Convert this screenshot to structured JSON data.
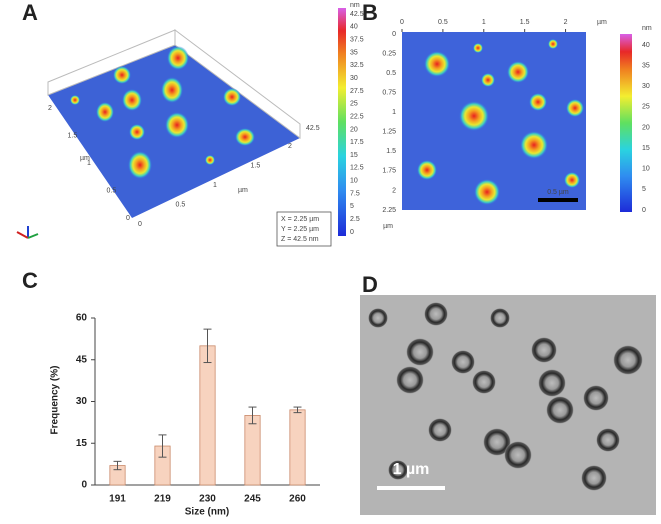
{
  "panels": {
    "a": "A",
    "b": "B",
    "c": "C",
    "d": "D"
  },
  "panel_a": {
    "colorbar_unit": "nm",
    "colorbar_ticks": [
      42.5,
      40,
      37.5,
      35,
      32.5,
      30,
      27.5,
      25,
      22.5,
      20,
      17.5,
      15,
      12.5,
      10,
      7.5,
      5,
      2.5,
      0
    ],
    "z_axis_label": "42.5",
    "x_ticks": [
      "0",
      "0.5",
      "1",
      "1.5",
      "2"
    ],
    "x_unit": "µm",
    "y_ticks": [
      "0",
      "0.5",
      "1",
      "1.5",
      "2"
    ],
    "y_unit": "µm",
    "info": [
      "X = 2.25 µm",
      "Y = 2.25 µm",
      "Z = 42.5 nm"
    ]
  },
  "panel_b": {
    "xticks": [
      0,
      0.5,
      1,
      1.5,
      2
    ],
    "x_unit": "µm",
    "yticks": [
      0,
      0.25,
      0.5,
      0.75,
      1,
      1.25,
      1.5,
      1.75,
      2,
      2.25
    ],
    "y_unit": "µm",
    "colorbar_unit": "nm",
    "colorbar_ticks": [
      0,
      5,
      10,
      15,
      20,
      25,
      30,
      35,
      40
    ],
    "scale_bar": "0.5 µm"
  },
  "chart_data": {
    "type": "bar",
    "x_label": "Size (nm)",
    "y_label": "Frequency (%)",
    "categories": [
      "191",
      "219",
      "230",
      "245",
      "260"
    ],
    "values": [
      7,
      14,
      50,
      25,
      27
    ],
    "errors": [
      1.5,
      4,
      6,
      3,
      1
    ],
    "color": "#f7d3bf",
    "edge_color": "#c98a6a",
    "ylim": [
      0,
      60
    ],
    "yticks": [
      0,
      15,
      30,
      45,
      60
    ]
  },
  "panel_d": {
    "scale_bar": "1 µm"
  }
}
